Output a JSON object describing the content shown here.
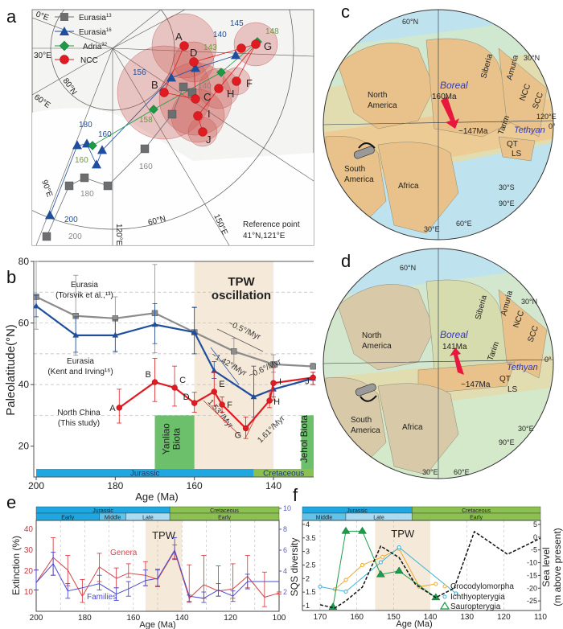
{
  "panels": {
    "a": "a",
    "b": "b",
    "c": "c",
    "d": "d",
    "e": "e",
    "f": "f"
  },
  "panel_a": {
    "legend": [
      {
        "label": "Eurasia",
        "sup": "13",
        "marker": "square",
        "color": "#6d6e70"
      },
      {
        "label": "Eurasia",
        "sup": "16",
        "marker": "triangle",
        "color": "#1f4e9c"
      },
      {
        "label": "Adria",
        "sup": "32",
        "marker": "diamond",
        "color": "#1e9a45"
      },
      {
        "label": "NCC",
        "sup": "",
        "marker": "circle",
        "color": "#e01b22"
      }
    ],
    "grid_labels": {
      "lon0": "0°E",
      "lon30": "30°E",
      "lon60": "60°E",
      "lat80": "80°N",
      "lon90": "90°E",
      "lat60": "60°N",
      "lon120": "120°E",
      "lon150": "150°E"
    },
    "reference": [
      "Reference point",
      "41°N,121°E"
    ],
    "ncc_letters": [
      "A",
      "B",
      "C",
      "D",
      "E",
      "F",
      "G",
      "H",
      "I",
      "J"
    ],
    "eurasia16_ages": [
      "200",
      "180",
      "160",
      "156",
      "140",
      "145"
    ],
    "eurasia13_ages": [
      "200",
      "180",
      "160",
      "140"
    ],
    "adria_ages": [
      "160",
      "158",
      "143",
      "148"
    ]
  },
  "panel_c": {
    "labels": {
      "boreal": "Boreal",
      "age_start": "160Ma",
      "age_end": "~147Ma",
      "north_america": [
        "North",
        "America"
      ],
      "siberia": "Siberia",
      "amuria": "Amuria",
      "ncc": "NCC",
      "scc": "SCC",
      "tarim": "Tarim",
      "tethyan": "Tethyan",
      "qt": "QT",
      "ls": "LS",
      "south_america": [
        "South",
        "America"
      ],
      "africa": "Africa"
    },
    "grid": {
      "n60": "60°N",
      "n30": "30°N",
      "e120": "120°E",
      "zero": "0°",
      "s30": "30°S",
      "e90": "90°E",
      "e60": "60°E",
      "e30": "30°E"
    }
  },
  "panel_d": {
    "labels": {
      "boreal": "Boreal",
      "age_start": "141Ma",
      "age_end": "~147Ma",
      "north_america": [
        "North",
        "America"
      ],
      "siberia": "Siberia",
      "amuria": "Amuria",
      "ncc": "NCC",
      "scc": "SCC",
      "tarim": "Tarim",
      "tethyan": "Tethyan",
      "qt": "QT",
      "ls": "LS",
      "south_america": [
        "South",
        "America"
      ],
      "africa": "Africa"
    },
    "grid": {
      "n60": "60°N",
      "n30": "30°N",
      "zero": "0°",
      "s30": "30°E",
      "e90": "90°E",
      "e60": "60°E",
      "e30": "30°E"
    }
  },
  "chart_data": [
    {
      "type": "line",
      "panel": "b",
      "xlabel": "Age (Ma)",
      "ylabel": "Paleolatitude(°N)",
      "xlim": [
        200,
        129
      ],
      "ylim": [
        10,
        80
      ],
      "xticks": [
        200,
        180,
        160,
        140
      ],
      "yticks": [
        20,
        40,
        60,
        80
      ],
      "grid": "dashed horizontal",
      "shaded": {
        "label": [
          "TPW",
          "oscillation"
        ],
        "from": 160,
        "to": 140,
        "color": "#f5ead9"
      },
      "biota": [
        {
          "label": [
            "Yanliao",
            "Biota"
          ],
          "from": 170,
          "to": 160,
          "top": 30,
          "color": "#6cbf6b"
        },
        {
          "label": [
            "Jehol Biota"
          ],
          "from": 133,
          "to": 129,
          "top": 30,
          "color": "#6cbf6b"
        }
      ],
      "periods": [
        {
          "name": "Jurassic",
          "from": 200,
          "to": 145,
          "color": "#1ea7e0"
        },
        {
          "name": "Cretaceous",
          "from": 145,
          "to": 129,
          "color": "#8cc152"
        }
      ],
      "series": [
        {
          "name": "Eurasia (Torsvik et al.,13)",
          "label": [
            "Eurasia",
            "(Torsvik et al.,¹³)"
          ],
          "color": "#8c8c8c",
          "marker": "square",
          "x": [
            200,
            190,
            180,
            170,
            160,
            150,
            140,
            130
          ],
          "y": [
            68.5,
            62.3,
            61.5,
            63.2,
            57,
            50.8,
            46.6,
            45.9
          ],
          "lo": [
            58,
            49.5,
            50.5,
            50.3,
            50,
            46,
            44,
            45
          ],
          "hi": [
            80,
            75.5,
            68.5,
            79,
            65.2,
            55,
            49.7,
            47
          ]
        },
        {
          "name": "Eurasia (Kent and Irving16)",
          "label": [
            "Eurasia",
            "(Kent and Irving¹⁶)"
          ],
          "color": "#1f4e9c",
          "marker": "triangle",
          "x": [
            200,
            190,
            180,
            170,
            160,
            155,
            145,
            140,
            130
          ],
          "y": [
            65.5,
            56,
            56,
            59.5,
            57,
            44.5,
            36,
            38.5,
            42
          ],
          "lo": [
            62,
            50.5,
            50.8,
            53.3,
            50,
            42,
            29.5,
            36,
            40
          ],
          "hi": [
            69,
            62,
            61,
            66.3,
            65,
            47.5,
            46,
            41,
            44
          ]
        },
        {
          "name": "North China (This study)",
          "label": [
            "North China",
            "(This study)"
          ],
          "color": "#e01b22",
          "marker": "circle",
          "x": [
            179,
            170,
            165,
            160,
            155,
            153,
            147,
            141,
            140,
            130
          ],
          "y": [
            32.5,
            40.8,
            39,
            34,
            37.7,
            33.5,
            25.8,
            34.8,
            40.5,
            42.3
          ],
          "lo": [
            27.5,
            34.5,
            33,
            31,
            33,
            31,
            22.5,
            32.5,
            35,
            40
          ],
          "hi": [
            38.5,
            48.5,
            46,
            37.5,
            44,
            36,
            29.5,
            38,
            45.5,
            44
          ],
          "point_labels": [
            "A",
            "B",
            "C",
            "D",
            "E",
            "F",
            "G",
            "H",
            "I",
            "J"
          ]
        }
      ],
      "annotations": [
        "~0.5°/Myr",
        "~1.42°/Myr",
        "~0.6°/Myr",
        "1.53°/Myr",
        "1.61°/Myr"
      ]
    },
    {
      "type": "line",
      "panel": "e",
      "xlabel": "Age (Ma)",
      "ylabel": "Extinction (%)",
      "ylabel_right": "",
      "xlim": [
        200,
        100
      ],
      "ylim": [
        0,
        45
      ],
      "ylim_right": [
        0,
        9
      ],
      "xticks": [
        200,
        180,
        160,
        140,
        120,
        100
      ],
      "yticks": [
        10,
        20,
        30,
        40
      ],
      "yticks_right": [
        2,
        4,
        6,
        8,
        10
      ],
      "shaded": {
        "label": [
          "TPW"
        ],
        "from": 155,
        "to": 140,
        "color": "#f5ead9"
      },
      "periods": [
        {
          "name": "Jurassic",
          "from": 200,
          "to": 145,
          "color": "#1ea7e0"
        },
        {
          "name": "Cretaceous",
          "from": 145,
          "to": 100,
          "color": "#8cc152"
        }
      ],
      "epochs": [
        {
          "name": "Early",
          "from": 200,
          "to": 174,
          "color": "#1ea7e0"
        },
        {
          "name": "Middle",
          "from": 174,
          "to": 163,
          "color": "#62c3ea"
        },
        {
          "name": "Late",
          "from": 163,
          "to": 145,
          "color": "#a9dcf3"
        },
        {
          "name": "Early",
          "from": 145,
          "to": 100,
          "color": "#8cc152"
        }
      ],
      "series": [
        {
          "name": "Genera",
          "color": "#d9434b",
          "axis": "left",
          "x": [
            200,
            193,
            187,
            181,
            174,
            167,
            162,
            155,
            150,
            143,
            137,
            131,
            125,
            119,
            113,
            106,
            100
          ],
          "y": [
            14.5,
            26.5,
            20.5,
            8,
            22,
            16.5,
            19,
            18,
            16,
            29.5,
            7,
            13.5,
            10.5,
            11.5,
            17.5,
            7.5,
            9.5
          ],
          "lo": [
            11,
            18,
            13,
            5,
            15,
            12,
            17,
            13,
            13,
            26,
            5,
            7,
            8,
            7,
            12,
            3,
            9
          ],
          "hi": [
            20.5,
            36,
            27.5,
            16,
            28.5,
            21.5,
            23.5,
            24.5,
            21,
            32.5,
            23,
            27.5,
            22.5,
            23.5,
            27.5,
            19.5,
            10
          ]
        },
        {
          "name": "Families",
          "color": "#4a4ad0",
          "axis": "right",
          "x": [
            200,
            193,
            187,
            181,
            174,
            167,
            162,
            155,
            150,
            143,
            137,
            131,
            125,
            119,
            113,
            106,
            100
          ],
          "y": [
            2.9,
            4.7,
            2.1,
            2.4,
            2.8,
            1.8,
            2.3,
            3.1,
            3.3,
            6.0,
            1.6,
            1.4,
            2.2,
            1.6,
            3.0,
            3.0,
            3.0
          ],
          "lo": [
            2.2,
            3.6,
            1.4,
            2.4,
            2.2,
            1.2,
            1.6,
            2.6,
            2.5,
            5.1,
            1.1,
            1.0,
            1.6,
            1.1,
            2.3,
            3.0,
            3.0
          ],
          "hi": [
            4.1,
            5.8,
            2.8,
            2.4,
            3.6,
            2.4,
            3.0,
            4.1,
            4.1,
            7.2,
            1.7,
            2.0,
            2.8,
            2.1,
            3.7,
            3.0,
            3.0
          ]
        }
      ]
    },
    {
      "type": "line",
      "panel": "f",
      "xlabel": "Age (Ma)",
      "ylabel": "SQS diversity",
      "ylabel_right": [
        "Sea level",
        "(m above present)"
      ],
      "xlim": [
        175,
        110
      ],
      "ylim": [
        0.83,
        4.1
      ],
      "ylim_right": [
        -28,
        6
      ],
      "xticks": [
        170,
        160,
        150,
        140,
        130,
        120,
        110
      ],
      "yticks": [
        1.0,
        1.5,
        2.0,
        2.5,
        3.0,
        3.5,
        4.0
      ],
      "yticks_right": [
        5,
        0,
        -5,
        -10,
        -15,
        -20,
        -25
      ],
      "shaded": {
        "label": [
          "TPW"
        ],
        "from": 155,
        "to": 140,
        "color": "#f5ead9"
      },
      "periods": [
        {
          "name": "Jurassic",
          "from": 175,
          "to": 145,
          "color": "#1ea7e0"
        },
        {
          "name": "Cretaceous",
          "from": 145,
          "to": 110,
          "color": "#8cc152"
        }
      ],
      "epochs": [
        {
          "name": "Middle",
          "from": 175,
          "to": 163,
          "color": "#62c3ea"
        },
        {
          "name": "Late",
          "from": 163,
          "to": 145,
          "color": "#a9dcf3"
        },
        {
          "name": "Early",
          "from": 145,
          "to": 110,
          "color": "#8cc152"
        }
      ],
      "series": [
        {
          "name": "Crocodylomorpha",
          "color": "#f0a830",
          "marker": "circle",
          "x": [
            166,
            163,
            158.5,
            153,
            148.5,
            143,
            138.5
          ],
          "y": [
            1.6,
            1.95,
            2.5,
            2.8,
            3.1,
            1.7,
            1.8
          ]
        },
        {
          "name": "Ichthyopterygia",
          "color": "#3ab0d8",
          "marker": "circle",
          "x": [
            170,
            163,
            153.5,
            148.5,
            133
          ],
          "y": [
            1.7,
            1.52,
            2.6,
            3.15,
            1.45
          ]
        },
        {
          "name": "Sauropterygia",
          "color": "#1f9a4a",
          "marker": "triangle",
          "x": [
            166.5,
            163,
            158.5,
            153.5,
            148.5,
            138.5
          ],
          "y": [
            0.95,
            3.75,
            3.75,
            2.15,
            2.28,
            1.3
          ]
        },
        {
          "name": "Sea level",
          "color": "#111111",
          "marker": "none",
          "axis": "right",
          "dashed": true,
          "x": [
            170,
            166,
            163,
            158.5,
            153.5,
            148.5,
            144,
            138.5,
            133.5,
            128,
            119,
            110
          ],
          "y": [
            -26.5,
            -27.8,
            -25,
            -19.6,
            -3.5,
            -8,
            -18.6,
            -23.7,
            -20,
            2.2,
            -6.7,
            -0.4
          ]
        }
      ]
    }
  ]
}
